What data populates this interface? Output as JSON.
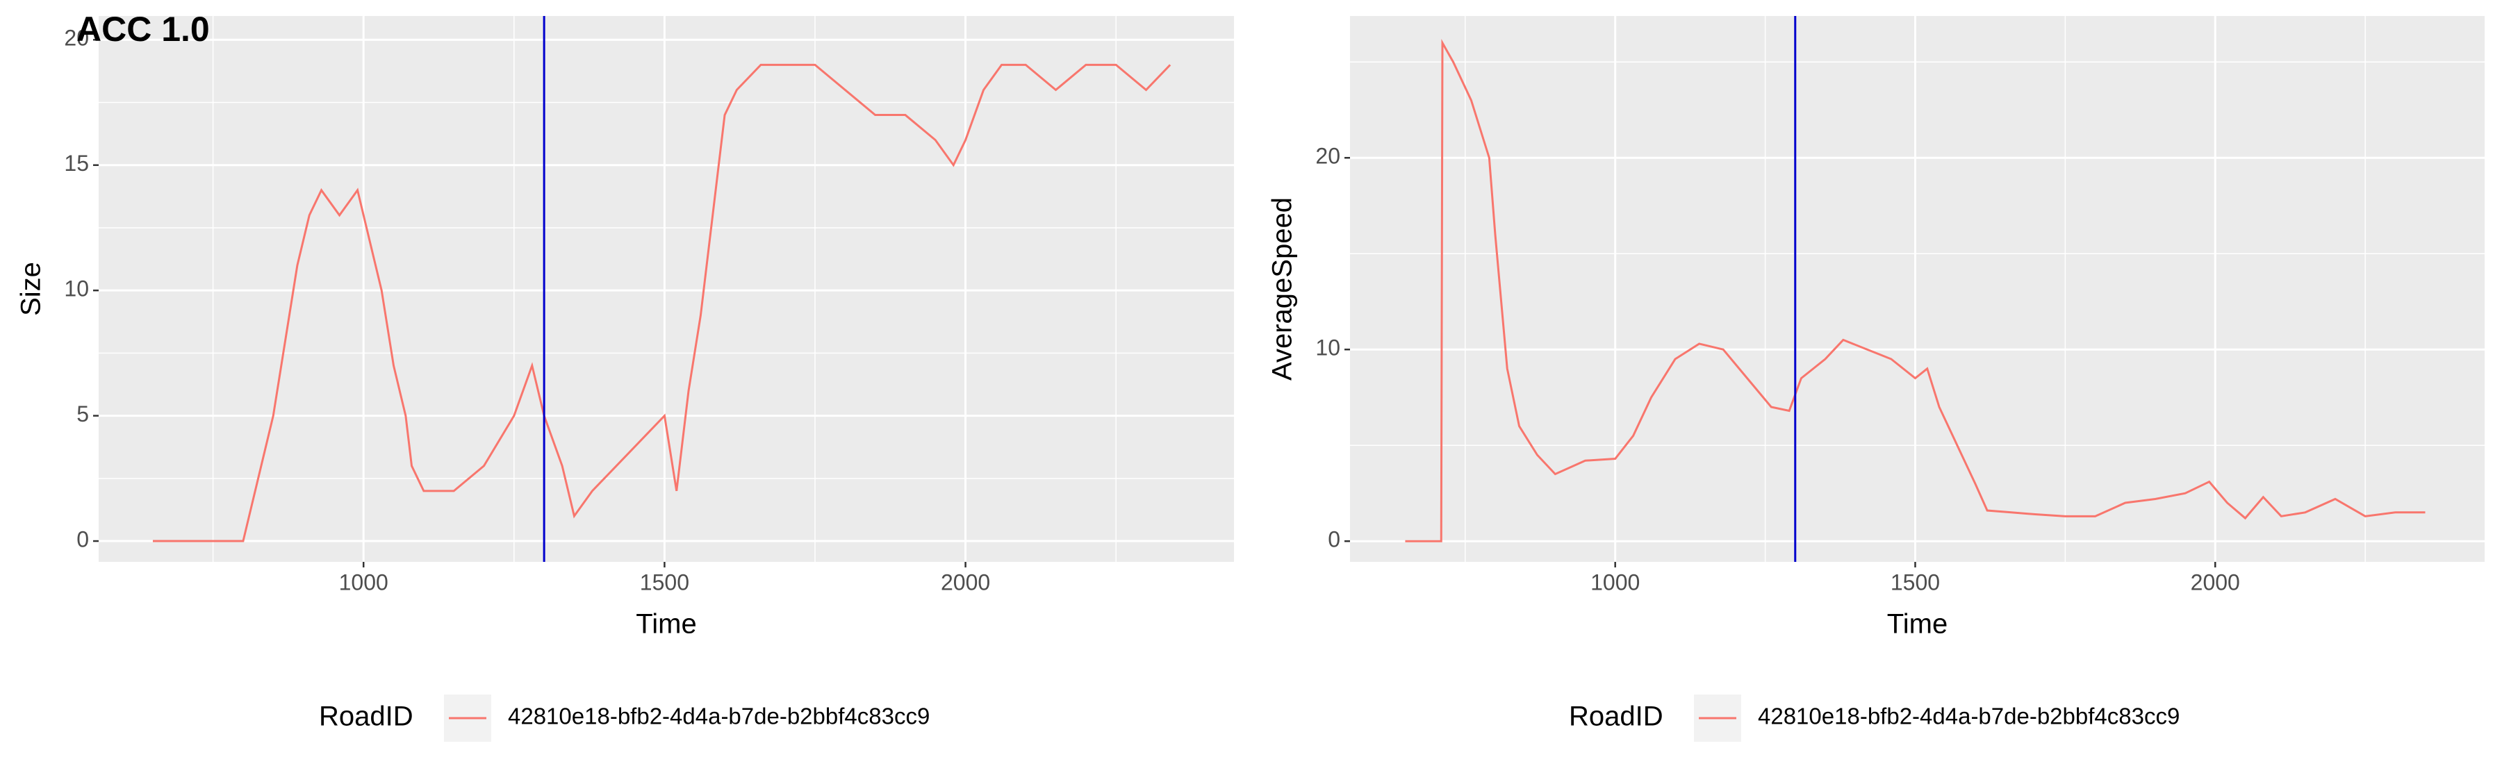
{
  "chart_data": [
    {
      "type": "line",
      "title": "ACC 1.0",
      "x_label": "Time",
      "y_label": "Size",
      "xlim": [
        560,
        2446
      ],
      "ylim": [
        -0.83,
        20.95
      ],
      "xticks": [
        1000,
        1500,
        2000
      ],
      "yticks": [
        0,
        5,
        10,
        15,
        20
      ],
      "grid": true,
      "vline": 1300,
      "vline_color": "#0000CD",
      "legend_title": "RoadID",
      "legend_position": "bottom",
      "series": [
        {
          "name": "42810e18-bfb2-4d4a-b7de-b2bbf4c83cc9",
          "color": "#F8766D",
          "x": [
            650,
            800,
            810,
            830,
            850,
            870,
            890,
            910,
            930,
            960,
            990,
            1010,
            1030,
            1050,
            1070,
            1080,
            1100,
            1150,
            1200,
            1250,
            1280,
            1300,
            1330,
            1350,
            1380,
            1420,
            1460,
            1500,
            1520,
            1540,
            1560,
            1580,
            1600,
            1620,
            1660,
            1700,
            1750,
            1800,
            1850,
            1900,
            1950,
            1980,
            2000,
            2030,
            2060,
            2100,
            2150,
            2200,
            2250,
            2300,
            2340
          ],
          "values": [
            0,
            0,
            1,
            3,
            5,
            8,
            11,
            13,
            14,
            13,
            14,
            12,
            10,
            7,
            5,
            3,
            2,
            2,
            3,
            5,
            7,
            5,
            3,
            1,
            2,
            3,
            4,
            5,
            2,
            6,
            9,
            13,
            17,
            18,
            19,
            19,
            19,
            18,
            17,
            17,
            16,
            15,
            16,
            18,
            19,
            19,
            18,
            19,
            19,
            18,
            19
          ]
        }
      ]
    },
    {
      "type": "line",
      "x_label": "Time",
      "y_label": "AverageSpeed",
      "xlim": [
        558,
        2449
      ],
      "ylim": [
        -1.08,
        27.4
      ],
      "xticks": [
        1000,
        1500,
        2000
      ],
      "yticks": [
        0,
        10,
        20
      ],
      "grid": true,
      "vline": 1300,
      "vline_color": "#0000CD",
      "legend_title": "RoadID",
      "legend_position": "bottom",
      "series": [
        {
          "name": "42810e18-bfb2-4d4a-b7de-b2bbf4c83cc9",
          "color": "#F8766D",
          "x": [
            650,
            710,
            712,
            730,
            760,
            790,
            800,
            820,
            840,
            870,
            900,
            950,
            1000,
            1030,
            1060,
            1100,
            1140,
            1180,
            1220,
            1260,
            1290,
            1310,
            1350,
            1380,
            1420,
            1460,
            1500,
            1520,
            1540,
            1570,
            1600,
            1620,
            1660,
            1700,
            1750,
            1800,
            1850,
            1900,
            1950,
            1990,
            2020,
            2050,
            2080,
            2110,
            2150,
            2200,
            2250,
            2300,
            2350
          ],
          "values": [
            0,
            0,
            26,
            25,
            23,
            20,
            16,
            9,
            6,
            4.5,
            3.5,
            4.2,
            4.3,
            5.5,
            7.5,
            9.5,
            10.3,
            10,
            8.5,
            7,
            6.8,
            8.5,
            9.5,
            10.5,
            10,
            9.5,
            8.5,
            9,
            7,
            5,
            3,
            1.6,
            1.5,
            1.4,
            1.3,
            1.3,
            2,
            2.2,
            2.5,
            3.1,
            2,
            1.2,
            2.3,
            1.3,
            1.5,
            2.2,
            1.3,
            1.5,
            1.5
          ]
        }
      ]
    }
  ]
}
